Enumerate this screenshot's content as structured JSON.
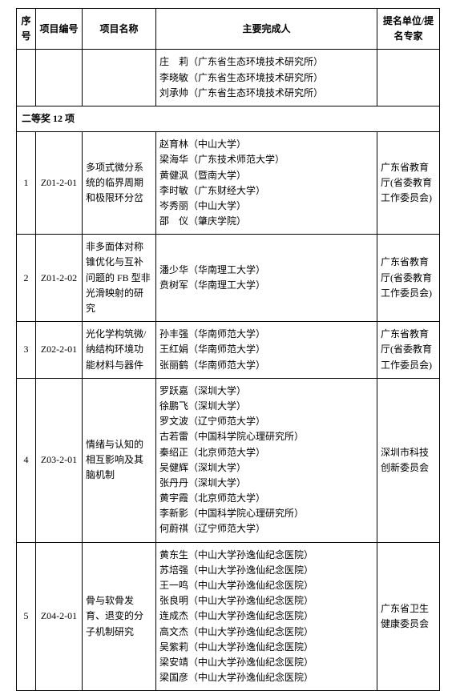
{
  "headers": {
    "seq": "序号",
    "code": "项目编号",
    "name": "项目名称",
    "persons": "主要完成人",
    "nominator": "提名单位/提名专家"
  },
  "prelude_row": {
    "persons": [
      "庄　莉（广东省生态环境技术研究所）",
      "李晓敏（广东省生态环境技术研究所）",
      "刘承帅（广东省生态环境技术研究所）"
    ]
  },
  "section_title": "二等奖 12 项",
  "rows": [
    {
      "seq": "1",
      "code": "Z01-2-01",
      "name": "多项式微分系统的临界周期和极限环分岔",
      "persons": [
        "赵育林（中山大学）",
        "梁海华（广东技术师范大学）",
        "黄健沨（暨南大学）",
        "李时敏（广东财经大学）",
        "岑秀丽（中山大学）",
        "邵　仪（肇庆学院）"
      ],
      "nominator": "广东省教育厅(省委教育工作委员会)"
    },
    {
      "seq": "2",
      "code": "Z01-2-02",
      "name": "非多面体对称锥优化与互补问题的 FB 型非光滑映射的研究",
      "persons": [
        "潘少华（华南理工大学）",
        "贲树军（华南理工大学）"
      ],
      "nominator": "广东省教育厅(省委教育工作委员会)"
    },
    {
      "seq": "3",
      "code": "Z02-2-01",
      "name": "光化学构筑微/纳结构环境功能材料与器件",
      "persons": [
        "孙丰强（华南师范大学）",
        "王红娟（华南师范大学）",
        "张丽鹤（华南师范大学）"
      ],
      "nominator": "广东省教育厅(省委教育工作委员会)"
    },
    {
      "seq": "4",
      "code": "Z03-2-01",
      "name": "情绪与认知的相互影响及其脑机制",
      "persons": [
        "罗跃嘉（深圳大学）",
        "徐鹏飞（深圳大学）",
        "罗文波（辽宁师范大学）",
        "古若雷（中国科学院心理研究所）",
        "秦绍正（北京师范大学）",
        "吴健辉（深圳大学）",
        "张丹丹（深圳大学）",
        "黄宇霞（北京师范大学）",
        "李新影（中国科学院心理研究所）",
        "何蔚祺（辽宁师范大学）"
      ],
      "nominator": "深圳市科技创新委员会"
    },
    {
      "seq": "5",
      "code": "Z04-2-01",
      "name": "骨与软骨发育、退变的分子机制研究",
      "persons": [
        "黄东生（中山大学孙逸仙纪念医院）",
        "苏培强（中山大学孙逸仙纪念医院）",
        "王一鸣（中山大学孙逸仙纪念医院）",
        "张良明（中山大学孙逸仙纪念医院）",
        "连成杰（中山大学孙逸仙纪念医院）",
        "高文杰（中山大学孙逸仙纪念医院）",
        "吴紫莉（中山大学孙逸仙纪念医院）",
        "梁安靖（中山大学孙逸仙纪念医院）",
        "梁国彦（中山大学孙逸仙纪念医院）"
      ],
      "nominator": "广东省卫生健康委员会"
    }
  ]
}
